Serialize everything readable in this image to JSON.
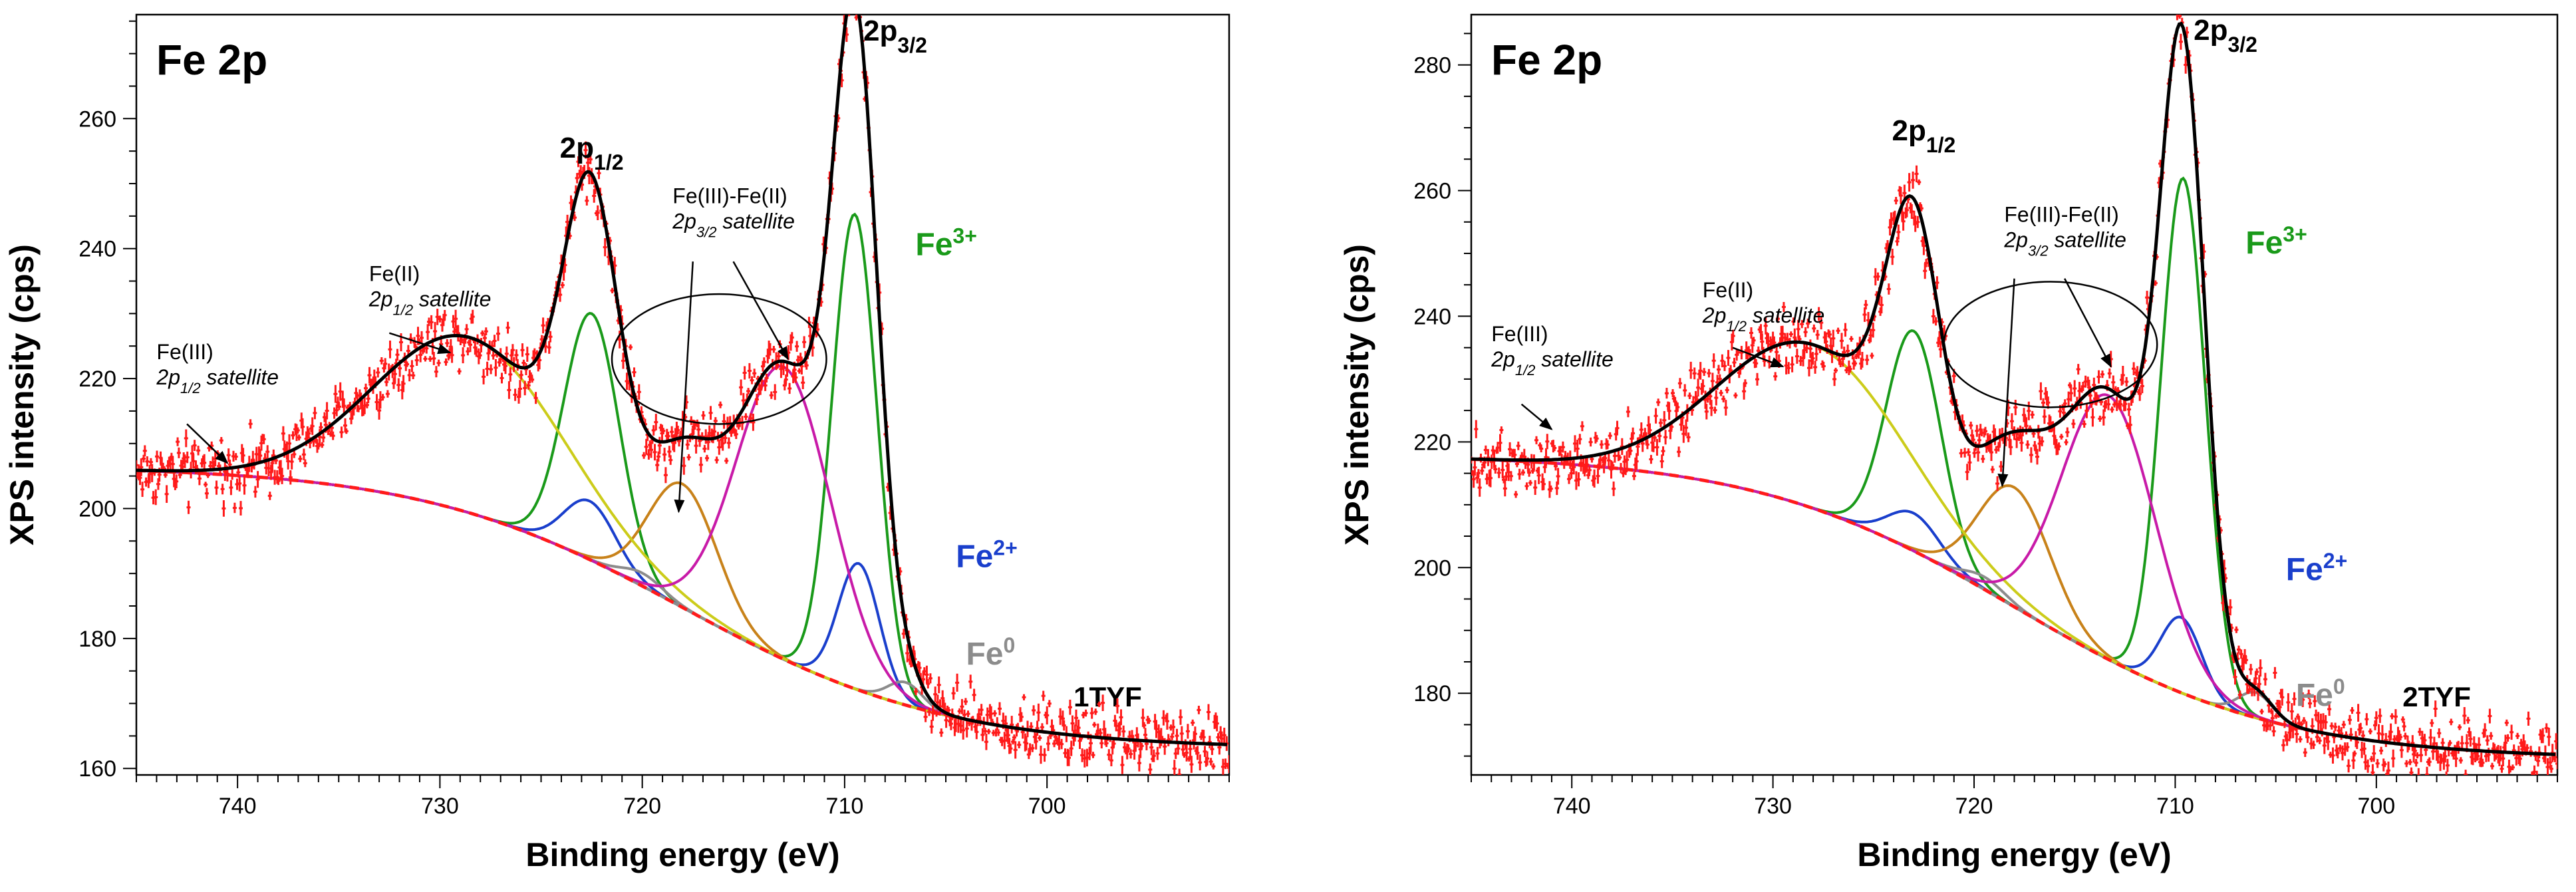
{
  "colors": {
    "data": "#ff1a1a",
    "envelope": "#000000",
    "fe3": "#1a9a1a",
    "fe2": "#1a3fcc",
    "fe0": "#8c8c8c",
    "sat_fe3fe2": "#c8821a",
    "sat_fe2": "#cccc1a",
    "magenta": "#c81aa8",
    "background": "#ff1a1a"
  },
  "chart_data": [
    {
      "type": "line",
      "panel": "left",
      "title": "Fe 2p",
      "sample": "1TYF",
      "xlabel": "Binding energy (eV)",
      "ylabel": "XPS intensity (cps)",
      "xlim": [
        745,
        691
      ],
      "ylim": [
        159,
        276
      ],
      "xticks": [
        740,
        730,
        720,
        710,
        700
      ],
      "xtick_labels": [
        "740",
        "730",
        "720",
        "710",
        "700"
      ],
      "yticks": [
        160,
        180,
        200,
        220,
        240,
        260
      ],
      "ytick_labels": [
        "160",
        "180",
        "200",
        "220",
        "240",
        "260"
      ],
      "peak_labels": {
        "p12": {
          "main": "2p",
          "sub": "1/2",
          "x": 722.5,
          "y": 254
        },
        "p32": {
          "main": "2p",
          "sub": "3/2",
          "x": 707.5,
          "y": 272
        }
      },
      "component_labels": {
        "fe3": {
          "main": "Fe",
          "sup": "3+",
          "x": 706.5,
          "y": 239
        },
        "fe2": {
          "main": "Fe",
          "sup": "2+",
          "x": 704.5,
          "y": 191
        },
        "fe0": {
          "main": "Fe",
          "sup": "0",
          "x": 704,
          "y": 176
        }
      },
      "annotations": [
        {
          "id": "fe3sat",
          "line1": "Fe(III)",
          "line2_main": "2p",
          "line2_sub": "1/2",
          "line2_rest": " satellite",
          "x": 744,
          "y": 223,
          "arrow_from": [
            742.5,
            213
          ],
          "arrow_to": [
            740.5,
            207
          ]
        },
        {
          "id": "fe2sat",
          "line1": "Fe(II)",
          "line2_main": "2p",
          "line2_sub": "1/2",
          "line2_rest": " satellite",
          "x": 733.5,
          "y": 235,
          "arrow_from": [
            732.5,
            227
          ],
          "arrow_to": [
            729.5,
            224
          ]
        },
        {
          "id": "fe3fe2sat",
          "line1": "Fe(III)-Fe(II)",
          "line2_main": "2p",
          "line2_sub": "3/2",
          "line2_rest": " satellite",
          "x": 718.5,
          "y": 247,
          "arrow_from": [
            717.5,
            238
          ],
          "arrow_to": [
            718.2,
            199.5
          ],
          "arrow2_from": [
            715.5,
            238
          ],
          "arrow2_to": [
            712.8,
            223
          ]
        }
      ],
      "ellipse": {
        "cx": 716.2,
        "cy": 223,
        "rx": 5.3,
        "ry": 10
      },
      "background_params": {
        "start": 206.5,
        "end": 163,
        "mid": 718
      },
      "components": [
        {
          "name": "Fe3+ 2p3/2",
          "key": "fe3",
          "center": 709.5,
          "height": 73,
          "fwhm": 2.6
        },
        {
          "name": "Fe3+ 2p1/2",
          "key": "fe3",
          "center": 722.5,
          "height": 38,
          "fwhm": 3.2
        },
        {
          "name": "Fe2+ 2p3/2",
          "key": "fe2",
          "center": 709.3,
          "height": 19.5,
          "fwhm": 2.4
        },
        {
          "name": "Fe2+ 2p1/2",
          "key": "fe2",
          "center": 722.6,
          "height": 9,
          "fwhm": 3.0
        },
        {
          "name": "Fe0 2p3/2",
          "key": "fe0",
          "center": 707.0,
          "height": 3.5,
          "fwhm": 2.0
        },
        {
          "name": "Fe0 2p1/2",
          "key": "fe0",
          "center": 720.0,
          "height": 2.0,
          "fwhm": 2.4
        },
        {
          "name": "Fe(III)-Fe(II) satellite",
          "key": "sat_fe3fe2",
          "center": 718.0,
          "height": 19,
          "fwhm": 4.0
        },
        {
          "name": "Fe(II) 2p1/2 satellite",
          "key": "sat_fe2",
          "center": 728.5,
          "height": 27,
          "fwhm": 11
        },
        {
          "name": "Fe 2p3/2 multiplet",
          "key": "magenta",
          "center": 713.0,
          "height": 45,
          "fwhm": 5.5
        }
      ],
      "noise_amp": 2.3
    },
    {
      "type": "line",
      "panel": "right",
      "title": "Fe 2p",
      "sample": "2TYF",
      "xlabel": "Binding energy (eV)",
      "ylabel": "XPS intensity (cps)",
      "xlim": [
        745,
        691
      ],
      "ylim": [
        167,
        288
      ],
      "xticks": [
        740,
        730,
        720,
        710,
        700
      ],
      "xtick_labels": [
        "740",
        "730",
        "720",
        "710",
        "700"
      ],
      "yticks": [
        180,
        200,
        220,
        240,
        260,
        280
      ],
      "ytick_labels": [
        "180",
        "200",
        "220",
        "240",
        "260",
        "280"
      ],
      "peak_labels": {
        "p12": {
          "main": "2p",
          "sub": "1/2",
          "x": 722.5,
          "y": 268
        },
        "p32": {
          "main": "2p",
          "sub": "3/2",
          "x": 707.5,
          "y": 284
        }
      },
      "component_labels": {
        "fe3": {
          "main": "Fe",
          "sup": "3+",
          "x": 706.5,
          "y": 250
        },
        "fe2": {
          "main": "Fe",
          "sup": "2+",
          "x": 704.5,
          "y": 198
        },
        "fe0": {
          "main": "Fe",
          "sup": "0",
          "x": 704,
          "y": 178
        }
      },
      "annotations": [
        {
          "id": "fe3sat",
          "line1": "Fe(III)",
          "line2_main": "2p",
          "line2_sub": "1/2",
          "line2_rest": " satellite",
          "x": 744,
          "y": 236,
          "arrow_from": [
            742.5,
            226
          ],
          "arrow_to": [
            741,
            222
          ]
        },
        {
          "id": "fe2sat",
          "line1": "Fe(II)",
          "line2_main": "2p",
          "line2_sub": "1/2",
          "line2_rest": " satellite",
          "x": 733.5,
          "y": 243,
          "arrow_from": [
            732,
            235
          ],
          "arrow_to": [
            729.5,
            232
          ]
        },
        {
          "id": "fe3fe2sat",
          "line1": "Fe(III)-Fe(II)",
          "line2_main": "2p",
          "line2_sub": "3/2",
          "line2_rest": " satellite",
          "x": 718.5,
          "y": 255,
          "arrow_from": [
            718,
            246
          ],
          "arrow_to": [
            718.6,
            213
          ]
        },
        {
          "id": "fe3fe2sat-arrow2",
          "line1": "",
          "line2_main": "",
          "line2_sub": "",
          "line2_rest": "",
          "x": 715.5,
          "y": 245,
          "arrow_from": [
            715.5,
            246
          ],
          "arrow_to": [
            713.2,
            232
          ]
        }
      ],
      "ellipse": {
        "cx": 716.2,
        "cy": 235.5,
        "rx": 5.3,
        "ry": 10
      },
      "background_params": {
        "start": 218,
        "end": 169.5,
        "mid": 718
      },
      "components": [
        {
          "name": "Fe3+ 2p3/2",
          "key": "fe3",
          "center": 709.6,
          "height": 82,
          "fwhm": 2.6
        },
        {
          "name": "Fe3+ 2p1/2",
          "key": "fe3",
          "center": 723.0,
          "height": 35,
          "fwhm": 3.2
        },
        {
          "name": "Fe2+ 2p3/2",
          "key": "fe2",
          "center": 709.7,
          "height": 12,
          "fwhm": 2.4
        },
        {
          "name": "Fe2+ 2p1/2",
          "key": "fe2",
          "center": 723.0,
          "height": 6,
          "fwhm": 3.0
        },
        {
          "name": "Fe0 2p3/2",
          "key": "fe0",
          "center": 706.0,
          "height": 4,
          "fwhm": 2.0
        },
        {
          "name": "Fe0 2p1/2",
          "key": "fe0",
          "center": 719.5,
          "height": 2.0,
          "fwhm": 2.4
        },
        {
          "name": "Fe(III)-Fe(II) satellite",
          "key": "sat_fe3fe2",
          "center": 718.0,
          "height": 19,
          "fwhm": 4.2
        },
        {
          "name": "Fe(II) 2p1/2 satellite",
          "key": "sat_fe2",
          "center": 728.0,
          "height": 26,
          "fwhm": 11
        },
        {
          "name": "Fe 2p3/2 multiplet",
          "key": "magenta",
          "center": 713.3,
          "height": 42,
          "fwhm": 5.5
        }
      ],
      "noise_amp": 2.6
    }
  ]
}
